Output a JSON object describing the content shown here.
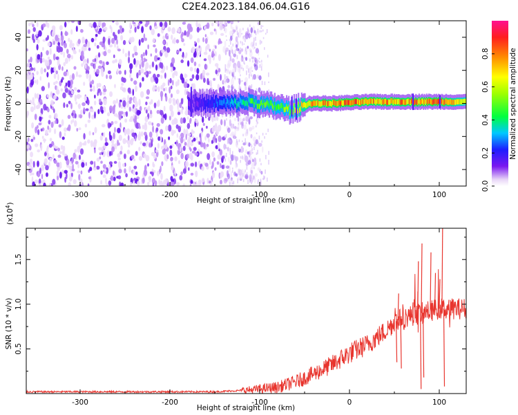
{
  "title": "C2E4.2023.184.06.04.G16",
  "chart_data": [
    {
      "type": "heatmap",
      "xlabel": "Height of straight line (km)",
      "ylabel": "Frequency (Hz)",
      "xlim": [
        -360,
        130
      ],
      "ylim": [
        -50,
        50
      ],
      "xticks": [
        {
          "v": -300,
          "label": "-300"
        },
        {
          "v": -200,
          "label": "-200"
        },
        {
          "v": -100,
          "label": "-100"
        },
        {
          "v": 0,
          "label": "0"
        },
        {
          "v": 100,
          "label": "100"
        }
      ],
      "yticks": [
        {
          "v": -40,
          "label": "-40"
        },
        {
          "v": -20,
          "label": "-20"
        },
        {
          "v": 0,
          "label": "0"
        },
        {
          "v": 20,
          "label": "20"
        },
        {
          "v": 40,
          "label": "40"
        }
      ],
      "colorbar": {
        "label": "Normalized spectral amplitude",
        "range": [
          0,
          1
        ],
        "ticks": [
          {
            "v": 0.0,
            "label": "0.0"
          },
          {
            "v": 0.2,
            "label": "0.2"
          },
          {
            "v": 0.4,
            "label": "0.4"
          },
          {
            "v": 0.6,
            "label": "0.6"
          },
          {
            "v": 0.8,
            "label": "0.8"
          }
        ]
      },
      "noise_region": {
        "x_from": -360,
        "x_to": -110,
        "fade_to": -95,
        "freq_range": [
          -50,
          50
        ]
      },
      "signal_band": {
        "freq_center": [
          {
            "x": -130,
            "y": 0
          },
          {
            "x": -110,
            "y": 1
          },
          {
            "x": -95,
            "y": -1
          },
          {
            "x": -80,
            "y": -2
          },
          {
            "x": -68,
            "y": -4
          },
          {
            "x": -60,
            "y": -3
          },
          {
            "x": -45,
            "y": 0
          },
          {
            "x": -20,
            "y": 0
          },
          {
            "x": 20,
            "y": 1
          },
          {
            "x": 60,
            "y": 1
          },
          {
            "x": 100,
            "y": 1
          },
          {
            "x": 130,
            "y": 1
          }
        ],
        "amplitude": [
          {
            "x": -175,
            "y": 0.12
          },
          {
            "x": -130,
            "y": 0.35
          },
          {
            "x": -100,
            "y": 0.5
          },
          {
            "x": -70,
            "y": 0.55
          },
          {
            "x": -40,
            "y": 0.8
          },
          {
            "x": 0,
            "y": 0.85
          },
          {
            "x": 40,
            "y": 0.8
          },
          {
            "x": 100,
            "y": 0.85
          },
          {
            "x": 130,
            "y": 0.6
          }
        ]
      }
    },
    {
      "type": "line",
      "xlabel": "Height of straight line (km)",
      "ylabel": "SNR (10 * v/v)",
      "yscale_label": "(x10",
      "yscale_exp": "4",
      "yscale_close": ")",
      "xlim": [
        -360,
        130
      ],
      "ylim": [
        0,
        1.85
      ],
      "xticks": [
        {
          "v": -300,
          "label": "-300"
        },
        {
          "v": -200,
          "label": "-200"
        },
        {
          "v": -100,
          "label": "-100"
        },
        {
          "v": 0,
          "label": "0"
        },
        {
          "v": 100,
          "label": "100"
        }
      ],
      "yticks": [
        {
          "v": 0.5,
          "label": "0.5"
        },
        {
          "v": 1.0,
          "label": "1.0"
        },
        {
          "v": 1.5,
          "label": "1.5"
        }
      ],
      "line_color": "#e8352e",
      "series": [
        {
          "trend": [
            {
              "x": -360,
              "y": 0.02
            },
            {
              "x": -150,
              "y": 0.02
            },
            {
              "x": -110,
              "y": 0.04
            },
            {
              "x": -80,
              "y": 0.07
            },
            {
              "x": -60,
              "y": 0.13
            },
            {
              "x": -40,
              "y": 0.22
            },
            {
              "x": -20,
              "y": 0.32
            },
            {
              "x": 0,
              "y": 0.45
            },
            {
              "x": 20,
              "y": 0.55
            },
            {
              "x": 40,
              "y": 0.7
            },
            {
              "x": 50,
              "y": 0.8
            },
            {
              "x": 60,
              "y": 0.85
            },
            {
              "x": 80,
              "y": 0.9
            },
            {
              "x": 100,
              "y": 0.95
            },
            {
              "x": 110,
              "y": 0.95
            },
            {
              "x": 130,
              "y": 0.95
            }
          ],
          "spikes": [
            {
              "x": 52,
              "y": 0.35
            },
            {
              "x": 54,
              "y": 1.12
            },
            {
              "x": 57,
              "y": 0.28
            },
            {
              "x": 70,
              "y": 1.02
            },
            {
              "x": 76,
              "y": 1.48
            },
            {
              "x": 79,
              "y": 0.05
            },
            {
              "x": 80,
              "y": 1.68
            },
            {
              "x": 82,
              "y": 0.18
            },
            {
              "x": 90,
              "y": 1.58
            },
            {
              "x": 95,
              "y": 1.35
            },
            {
              "x": 100,
              "y": 1.28
            },
            {
              "x": 103,
              "y": 1.92
            },
            {
              "x": 105,
              "y": 0.08
            },
            {
              "x": 110,
              "y": 1.05
            }
          ]
        }
      ]
    }
  ]
}
